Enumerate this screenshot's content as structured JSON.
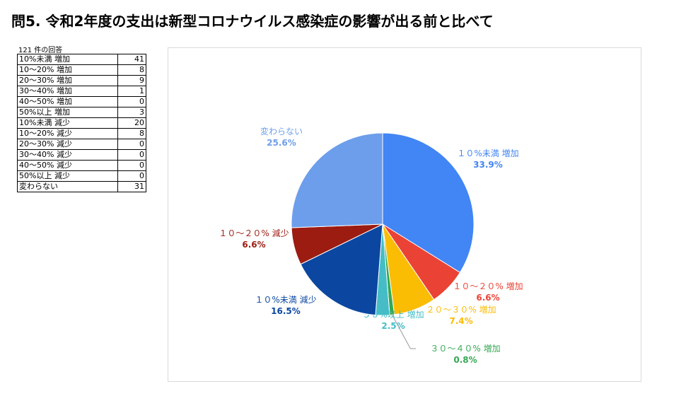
{
  "title": "問5. 令和2年度の支出は新型コロナウイルス感染症の影響が出る前と比べて",
  "responses": "121 件の回答",
  "table": [
    {
      "label": "10%未満 増加",
      "value": "41"
    },
    {
      "label": "10〜20% 増加",
      "value": "8"
    },
    {
      "label": "20〜30% 増加",
      "value": "9"
    },
    {
      "label": "30〜40% 増加",
      "value": "1"
    },
    {
      "label": "40〜50% 増加",
      "value": "0"
    },
    {
      "label": "50%以上 増加",
      "value": "3"
    },
    {
      "label": "10%未満 減少",
      "value": "20"
    },
    {
      "label": "10〜20% 減少",
      "value": "8"
    },
    {
      "label": "20〜30% 減少",
      "value": "0"
    },
    {
      "label": "30〜40% 減少",
      "value": "0"
    },
    {
      "label": "40〜50% 減少",
      "value": "0"
    },
    {
      "label": "50%以上 減少",
      "value": "0"
    },
    {
      "label": "変わらない",
      "value": "31"
    }
  ],
  "chart_data": {
    "type": "pie",
    "slices": [
      {
        "label": "１０%未満 増加",
        "pct_label": "33.9%",
        "value": 41,
        "color": "#4285f4"
      },
      {
        "label": "１０〜２０% 増加",
        "pct_label": "6.6%",
        "value": 8,
        "color": "#ea4335"
      },
      {
        "label": "２０〜３０% 増加",
        "pct_label": "7.4%",
        "value": 9,
        "color": "#fbbc04"
      },
      {
        "label": "３０〜４０% 増加",
        "pct_label": "0.8%",
        "value": 1,
        "color": "#34a853"
      },
      {
        "label": "５０%以上 増加",
        "pct_label": "2.5%",
        "value": 3,
        "color": "#46bdc6"
      },
      {
        "label": "１０%未満 減少",
        "pct_label": "16.5%",
        "value": 20,
        "color": "#0b47a1"
      },
      {
        "label": "１０〜２０% 減少",
        "pct_label": "6.6%",
        "value": 8,
        "color": "#9c1c12"
      },
      {
        "label": "変わらない",
        "pct_label": "25.6%",
        "value": 31,
        "color": "#6d9eeb"
      }
    ]
  }
}
